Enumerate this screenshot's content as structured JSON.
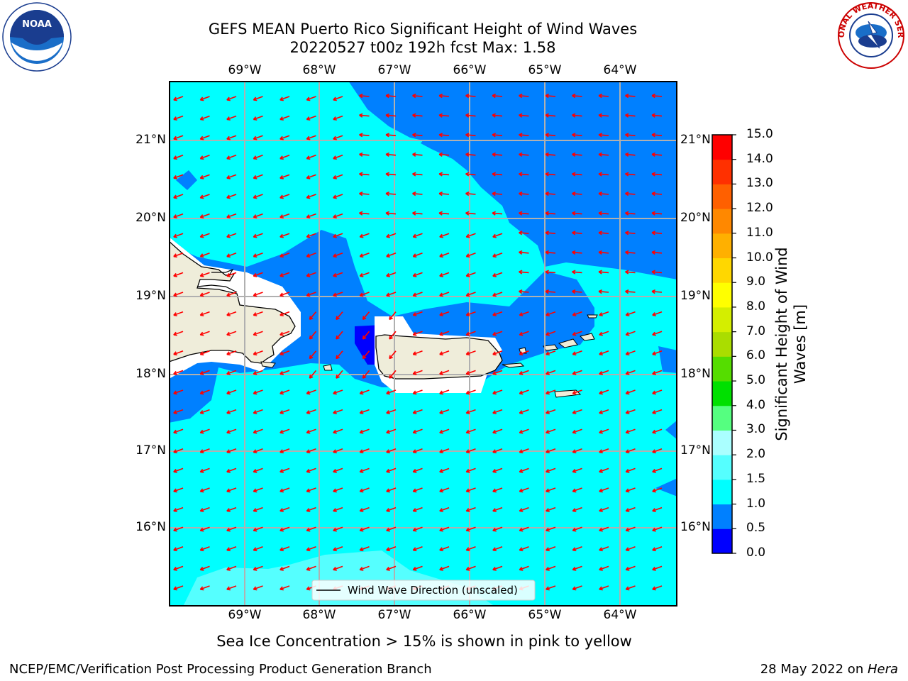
{
  "title_line1": "GEFS MEAN Puerto Rico Significant Height of Wind Waves",
  "title_line2": "20220527 t00z 192h fcst   Max: 1.58",
  "colorbar": {
    "label": "Significant Height of Wind Waves [m]",
    "ticks": [
      "0.0",
      "0.5",
      "1.0",
      "1.5",
      "2.0",
      "3.0",
      "4.0",
      "5.0",
      "6.0",
      "7.0",
      "8.0",
      "9.0",
      "10.0",
      "11.0",
      "12.0",
      "13.0",
      "14.0",
      "15.0"
    ],
    "colors": [
      "#0000ff",
      "#0080ff",
      "#00ffff",
      "#55ffff",
      "#aaffff",
      "#55ff80",
      "#00e000",
      "#55dd00",
      "#aadd00",
      "#d4ee00",
      "#ffff00",
      "#ffd700",
      "#ffb000",
      "#ff8800",
      "#ff6000",
      "#ff3000",
      "#ff0000"
    ]
  },
  "map": {
    "lon_labels": [
      "69°W",
      "68°W",
      "67°W",
      "66°W",
      "65°W",
      "64°W"
    ],
    "lat_labels": [
      "21°N",
      "20°N",
      "19°N",
      "18°N",
      "17°N",
      "16°N"
    ],
    "legend_label": "Wind Wave Direction (unscaled)",
    "ocean_color": "#00ffff",
    "land_color": "#efedda",
    "arrow_color": "#ff0000"
  },
  "sea_ice_note": "Sea Ice Concentration > 15% is shown in pink to yellow",
  "footer_left": "NCEP/EMC/Verification Post Processing Product Generation Branch",
  "footer_right_date": "28 May 2022 on ",
  "footer_right_host": "Hera",
  "logos": {
    "left": "NOAA",
    "right": "NATIONAL WEATHER SERVICE"
  }
}
